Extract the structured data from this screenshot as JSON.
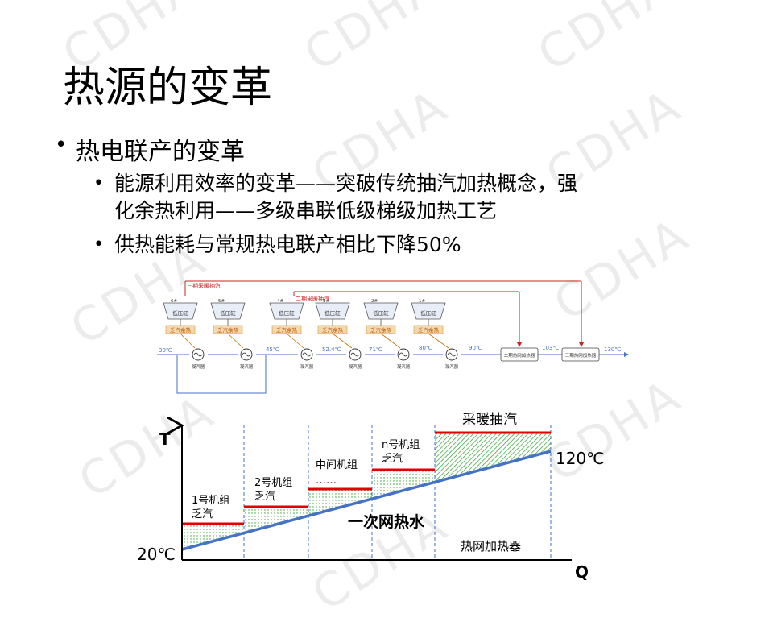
{
  "slide": {
    "title": "热源的变革",
    "bullet1": "热电联产的变革",
    "bullet2_line1": "能源利用效率的变革——突破传统抽汽加热概念，强",
    "bullet2_line2": "化余热利用——多级串联低级梯级加热工艺",
    "bullet3": "供热能耗与常规热电联产相比下降50%"
  },
  "watermark": "CDHA",
  "schematic": {
    "extraction_label_1": "三期采暖抽汽",
    "extraction_label_2": "二期采暖抽汽",
    "units": [
      {
        "num": "6#",
        "box": "低压缸",
        "exhaust": "乏汽余热"
      },
      {
        "num": "5#",
        "box": "低压缸",
        "exhaust": "乏汽余热"
      },
      {
        "num": "4#",
        "box": "低压缸",
        "exhaust": "乏汽余热"
      },
      {
        "num": "3#",
        "box": "低压缸",
        "exhaust": "乏汽余热"
      },
      {
        "num": "2#",
        "box": "低压缸",
        "exhaust": "乏汽余热"
      },
      {
        "num": "1#",
        "box": "低压缸",
        "exhaust": "乏汽余热"
      }
    ],
    "temps": [
      "30℃",
      "45℃",
      "52.4℃",
      "71℃",
      "80℃",
      "90℃",
      "103℃",
      "130℃"
    ],
    "condenser_label": "凝汽器",
    "heater_labels": [
      "二期热网加热器",
      "三期热网加热器"
    ]
  },
  "chart": {
    "y_axis": "T",
    "x_axis": "Q",
    "temp_low": "20℃",
    "temp_high": "120℃",
    "stage_labels": [
      {
        "line1": "1号机组",
        "line2": "乏汽"
      },
      {
        "line1": "2号机组",
        "line2": "乏汽"
      },
      {
        "line1": "中间机组",
        "line2": "……"
      },
      {
        "line1": "n号机组",
        "line2": "乏汽"
      }
    ],
    "top_label": "采暖抽汽",
    "water_label": "一次网热水",
    "heater_label": "热网加热器",
    "colors": {
      "water_line": "#4472c4",
      "steam_line": "#e00000",
      "hatch": "#2e9e2e"
    }
  }
}
